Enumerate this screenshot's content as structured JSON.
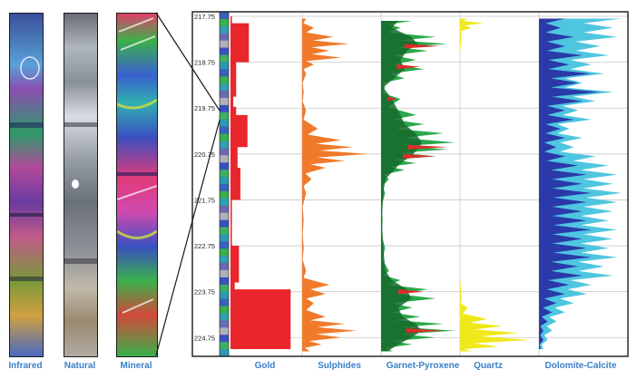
{
  "core_images": [
    {
      "label": "Infrared"
    },
    {
      "label": "Natural"
    },
    {
      "label": "Mineral"
    }
  ],
  "colors": {
    "label_blue": "#3a7fc7",
    "gold": "#e8262c",
    "sulphides": "#f07a2a",
    "garnet": "#2aa84a",
    "garnet_dark": "#146a2a",
    "garnet_red": "#e02a2a",
    "quartz": "#f0e81a",
    "dolomite_light": "#4fc6e0",
    "dolomite_dark": "#2a3aa8",
    "grid": "#c8c8c8",
    "frame": "#1a1a1a"
  },
  "chart_data": {
    "type": "area",
    "title": "",
    "ylabel": "",
    "y_orientation": "depth increasing downward",
    "ylim": [
      217.75,
      225.1
    ],
    "yticks": [
      217.75,
      218.75,
      219.75,
      220.75,
      221.75,
      222.75,
      223.75,
      224.75
    ],
    "ytick_labels": [
      "217.75",
      "218.75",
      "219.75",
      "220.75",
      "221.75",
      "222.75",
      "223.75",
      "224.75"
    ],
    "grid": true,
    "tracks": [
      {
        "name": "Gold",
        "kind": "step",
        "color": "#e8262c",
        "depth": [
          217.75,
          217.9,
          217.9,
          218.75,
          218.75,
          219.5,
          219.5,
          219.72,
          219.72,
          219.9,
          219.9,
          220.6,
          220.6,
          221.05,
          221.05,
          221.75,
          221.75,
          222.75,
          222.75,
          223.55,
          223.55,
          223.7,
          223.7,
          225.0
        ],
        "value": [
          0.02,
          0.02,
          0.26,
          0.26,
          0.08,
          0.08,
          0.04,
          0.04,
          0.08,
          0.08,
          0.24,
          0.24,
          0.1,
          0.1,
          0.14,
          0.14,
          0.02,
          0.02,
          0.12,
          0.12,
          0.06,
          0.06,
          0.85,
          0.85
        ]
      },
      {
        "name": "Sulphides",
        "kind": "spiky",
        "color": "#f07a2a",
        "depth": [
          217.8,
          218.0,
          218.2,
          218.35,
          218.5,
          218.65,
          218.8,
          219.0,
          219.4,
          219.8,
          220.2,
          220.45,
          220.6,
          220.75,
          220.9,
          221.05,
          221.3,
          221.6,
          222.2,
          222.8,
          223.3,
          223.6,
          223.8,
          224.0,
          224.3,
          224.45,
          224.6,
          224.75,
          224.9,
          225.05
        ],
        "value": [
          0.05,
          0.15,
          0.4,
          0.6,
          0.35,
          0.5,
          0.15,
          0.05,
          0.02,
          0.05,
          0.2,
          0.5,
          0.65,
          0.85,
          0.55,
          0.3,
          0.12,
          0.05,
          0.02,
          0.02,
          0.05,
          0.35,
          0.3,
          0.15,
          0.3,
          0.55,
          0.7,
          0.5,
          0.25,
          0.1
        ]
      },
      {
        "name": "Garnet-Pyroxene",
        "kind": "spiky-multi",
        "colors": [
          "#2aa84a",
          "#146a2a",
          "#e02a2a"
        ],
        "depth": [
          217.85,
          218.0,
          218.2,
          218.35,
          218.5,
          218.7,
          218.9,
          219.1,
          219.3,
          219.55,
          219.9,
          220.1,
          220.3,
          220.5,
          220.65,
          220.8,
          220.95,
          221.1,
          221.3,
          221.6,
          222.2,
          222.8,
          223.3,
          223.5,
          223.7,
          223.9,
          224.1,
          224.3,
          224.45,
          224.6,
          224.75,
          224.9,
          225.05
        ],
        "value": [
          0.4,
          0.25,
          0.7,
          0.85,
          0.6,
          0.45,
          0.55,
          0.3,
          0.05,
          0.25,
          0.45,
          0.55,
          0.8,
          0.95,
          0.85,
          0.7,
          0.45,
          0.3,
          0.1,
          0.05,
          0.02,
          0.05,
          0.1,
          0.25,
          0.6,
          0.7,
          0.4,
          0.5,
          0.8,
          0.95,
          0.7,
          0.4,
          0.15
        ]
      },
      {
        "name": "Quartz",
        "kind": "spiky",
        "color": "#f0e81a",
        "depth": [
          217.8,
          217.9,
          218.0,
          218.15,
          219.0,
          220.0,
          221.0,
          222.0,
          223.0,
          223.9,
          224.1,
          224.35,
          224.5,
          224.65,
          224.8,
          224.95,
          225.05
        ],
        "value": [
          0.1,
          0.3,
          0.15,
          0.02,
          0.0,
          0.0,
          0.0,
          0.0,
          0.0,
          0.02,
          0.1,
          0.35,
          0.55,
          0.75,
          0.9,
          0.5,
          0.15
        ]
      },
      {
        "name": "Dolomite-Calcite",
        "kind": "dual",
        "colors": [
          "#4fc6e0",
          "#2a3aa8"
        ],
        "depth": [
          217.8,
          218.0,
          218.2,
          218.4,
          218.6,
          218.8,
          219.0,
          219.2,
          219.4,
          219.6,
          219.8,
          220.0,
          220.2,
          220.4,
          220.6,
          220.8,
          221.0,
          221.2,
          221.4,
          221.6,
          221.8,
          222.0,
          222.2,
          222.4,
          222.6,
          222.8,
          223.0,
          223.2,
          223.4,
          223.6,
          223.8,
          224.0,
          224.2,
          224.4,
          224.6,
          224.8,
          225.0
        ],
        "value": [
          0.95,
          0.85,
          0.9,
          0.7,
          0.8,
          0.6,
          0.75,
          0.5,
          0.85,
          0.65,
          0.45,
          0.6,
          0.35,
          0.5,
          0.4,
          0.65,
          0.8,
          0.9,
          0.85,
          0.95,
          0.9,
          0.85,
          0.8,
          0.9,
          0.85,
          0.8,
          0.9,
          0.75,
          0.85,
          0.6,
          0.55,
          0.4,
          0.3,
          0.2,
          0.15,
          0.1,
          0.05
        ],
        "dark_value": [
          0.3,
          0.25,
          0.4,
          0.3,
          0.5,
          0.35,
          0.6,
          0.45,
          0.7,
          0.5,
          0.3,
          0.4,
          0.25,
          0.3,
          0.2,
          0.3,
          0.45,
          0.55,
          0.5,
          0.6,
          0.55,
          0.5,
          0.55,
          0.6,
          0.5,
          0.55,
          0.6,
          0.45,
          0.5,
          0.35,
          0.3,
          0.2,
          0.15,
          0.1,
          0.05,
          0.05,
          0.02
        ]
      }
    ]
  }
}
